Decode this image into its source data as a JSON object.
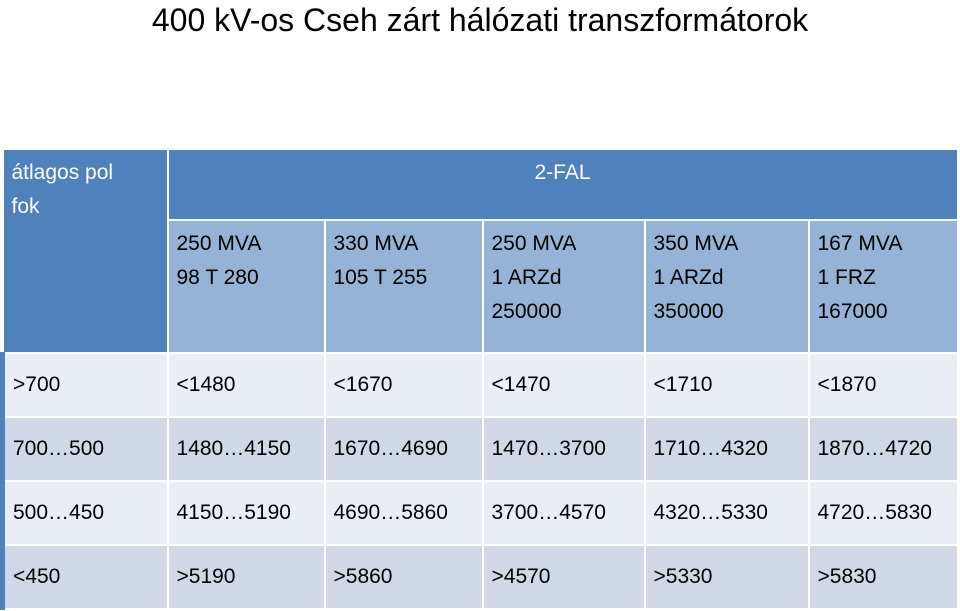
{
  "title": "400 kV-os Cseh zárt hálózati transzformátorok",
  "table": {
    "corner": [
      "átlagos pol",
      "fok"
    ],
    "group": "2-FAL",
    "columns": [
      [
        "250 MVA",
        "98 T 280"
      ],
      [
        "330 MVA",
        "105 T 255"
      ],
      [
        "250 MVA",
        "1 ARZd",
        "250000"
      ],
      [
        "350 MVA",
        "1 ARZd",
        "350000"
      ],
      [
        "167 MVA",
        "1 FRZ",
        "167000"
      ]
    ],
    "rows": [
      [
        ">700",
        "<1480",
        "<1670",
        "<1470",
        "<1710",
        "<1870"
      ],
      [
        "700…500",
        "1480…4150",
        "1670…4690",
        "1470…3700",
        "1710…4320",
        "1870…4720"
      ],
      [
        "500…450",
        "4150…5190",
        "4690…5860",
        "3700…4570",
        "4320…5330",
        "4720…5830"
      ],
      [
        "<450",
        ">5190",
        ">5860",
        ">4570",
        ">5330",
        ">5830"
      ]
    ]
  }
}
